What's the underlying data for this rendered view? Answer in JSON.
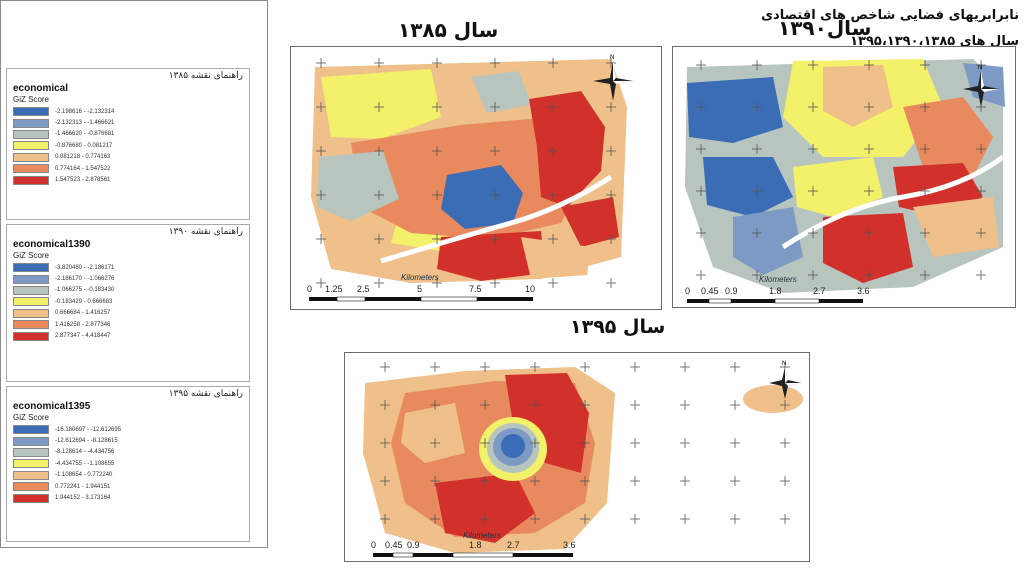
{
  "legend_panel": {
    "title_line1": "نابرابریهای فضایی شاخص های اقتصادی",
    "title_line2": "سال های ۱۳۹۵،۱۳۹۰،۱۳۸۵",
    "groups": [
      {
        "header": "راهنمای نقشه ۱۳۸۵",
        "layer": "economical",
        "field": "GiZ Score",
        "classes": [
          {
            "range": "-2.198616 - -2.132314",
            "color": "#3a6db5"
          },
          {
            "range": "-2.132313 - -1.466621",
            "color": "#7d9ac4"
          },
          {
            "range": "-1.466620 - -0.876681",
            "color": "#b8c5bf"
          },
          {
            "range": "-0.876680 - 0.081217",
            "color": "#f3f06a"
          },
          {
            "range": "0.081218 - 0.774163",
            "color": "#f0c08a"
          },
          {
            "range": "0.774164 - 1.547522",
            "color": "#e98a5e"
          },
          {
            "range": "1.547523 - 2.878561",
            "color": "#d2302b"
          }
        ]
      },
      {
        "header": "راهنمای نقشه ۱۳۹۰",
        "layer": "economical1390",
        "field": "GiZ Score",
        "classes": [
          {
            "range": "-3.820480 - -2.186171",
            "color": "#3a6db5"
          },
          {
            "range": "-2.186170 - -1.066276",
            "color": "#7d9ac4"
          },
          {
            "range": "-1.066275 - -0.183430",
            "color": "#b8c5bf"
          },
          {
            "range": "-0.183429 - 0.666683",
            "color": "#f3f06a"
          },
          {
            "range": "0.666684 - 1.416257",
            "color": "#f0c08a"
          },
          {
            "range": "1.416258 - 2.877346",
            "color": "#e98a5e"
          },
          {
            "range": "2.877347 - 4.418447",
            "color": "#d2302b"
          }
        ]
      },
      {
        "header": "راهنمای نقشه ۱۳۹۵",
        "layer": "economical1395",
        "field": "GiZ Score",
        "classes": [
          {
            "range": "-16.180697 - -12.612695",
            "color": "#3a6db5"
          },
          {
            "range": "-12.612694 - -8.128615",
            "color": "#7d9ac4"
          },
          {
            "range": "-8.128614 - -4.434756",
            "color": "#b8c5bf"
          },
          {
            "range": "-4.434755 - -1.108655",
            "color": "#f3f06a"
          },
          {
            "range": "-1.108654 - 0.772240",
            "color": "#f0c08a"
          },
          {
            "range": "0.772241 - 1.944151",
            "color": "#e98a5e"
          },
          {
            "range": "1.944152 - 3.173164",
            "color": "#d2302b"
          }
        ]
      }
    ]
  },
  "maps": {
    "m1385": {
      "title": "سال ۱۳۸۵",
      "scale_labels": [
        "0",
        "1.25",
        "2.5",
        "5",
        "7.5",
        "10"
      ],
      "unit": "Kilometers"
    },
    "m1390": {
      "title": "سال۱۳۹۰",
      "scale_labels": [
        "0",
        "0.45",
        "0.9",
        "1.8",
        "2.7",
        "3.6"
      ],
      "unit": "Kilometers"
    },
    "m1395": {
      "title": "سال ۱۳۹۵",
      "scale_labels": [
        "0",
        "0.45",
        "0.9",
        "1.8",
        "2.7",
        "3.6"
      ],
      "unit": "Kilometers"
    }
  },
  "compass_label": "N",
  "colors": {
    "blue": "#3a6db5",
    "light_blue": "#7d9ac4",
    "gray": "#b8c5bf",
    "yellow": "#f3f06a",
    "peach": "#f0c08a",
    "orange": "#e98a5e",
    "red": "#d2302b",
    "road": "#ffffff"
  }
}
